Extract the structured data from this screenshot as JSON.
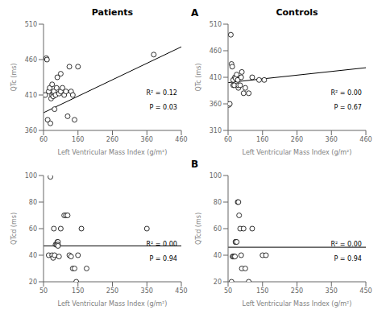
{
  "chart_data": [
    {
      "type": "scatter",
      "title": "Patients",
      "color": "black",
      "marker": "hollow circle",
      "grid": false,
      "x": [
        65,
        68,
        70,
        72,
        75,
        78,
        80,
        82,
        85,
        85,
        88,
        90,
        90,
        92,
        95,
        98,
        100,
        105,
        110,
        110,
        115,
        120,
        125,
        130,
        135,
        140,
        145,
        150,
        160,
        380
      ],
      "values": [
        410,
        462,
        460,
        375,
        415,
        420,
        370,
        405,
        410,
        425,
        408,
        413,
        415,
        390,
        410,
        420,
        435,
        412,
        440,
        415,
        420,
        410,
        415,
        380,
        450,
        415,
        410,
        375,
        450,
        467
      ],
      "regression_line": {
        "x": [
          60,
          460
        ],
        "y": [
          385,
          478
        ],
        "color": "black"
      },
      "annotations": [
        "R² = 0.12",
        "P = 0.03"
      ],
      "xlabel": "Left Ventricular Mass Index (g/m²)",
      "ylabel": "QTc (ms)",
      "xlim": [
        60,
        460
      ],
      "xticks": [
        60,
        160,
        260,
        360,
        460
      ],
      "ylim": [
        360,
        510
      ],
      "yticks": [
        360,
        410,
        460,
        510
      ]
    },
    {
      "type": "scatter",
      "title": "Controls",
      "panel_label": "A",
      "color": "black",
      "marker": "hollow circle",
      "grid": false,
      "x": [
        62,
        65,
        68,
        70,
        72,
        75,
        75,
        78,
        80,
        82,
        85,
        88,
        90,
        90,
        95,
        98,
        100,
        105,
        110,
        120,
        130,
        150,
        165
      ],
      "values": [
        358,
        360,
        490,
        435,
        430,
        395,
        405,
        395,
        410,
        408,
        415,
        405,
        390,
        395,
        395,
        410,
        420,
        380,
        390,
        380,
        410,
        405,
        405
      ],
      "regression_line": {
        "x": [
          60,
          460
        ],
        "y": [
          400,
          428
        ],
        "color": "black"
      },
      "annotations": [
        "R² = 0.00",
        "P = 0.67"
      ],
      "xlabel": "Left Ventricular Mass Index (g/m²)",
      "ylabel": "QTc (ms)",
      "xlim": [
        60,
        460
      ],
      "xticks": [
        60,
        160,
        260,
        360,
        460
      ],
      "ylim": [
        310,
        510
      ],
      "yticks": [
        310,
        360,
        410,
        460,
        510
      ]
    },
    {
      "type": "scatter",
      "color": "black",
      "marker": "hollow circle",
      "grid": false,
      "x": [
        65,
        70,
        75,
        78,
        80,
        82,
        85,
        88,
        90,
        92,
        92,
        92,
        95,
        100,
        110,
        115,
        120,
        125,
        130,
        135,
        140,
        145,
        150,
        160,
        175,
        350
      ],
      "values": [
        40,
        99,
        40,
        38,
        60,
        40,
        48,
        48,
        50,
        50,
        48,
        47,
        39,
        60,
        70,
        70,
        70,
        40,
        39,
        30,
        30,
        20,
        40,
        60,
        30,
        60
      ],
      "regression_line": {
        "x": [
          50,
          450
        ],
        "y": [
          47,
          47
        ],
        "color": "black"
      },
      "annotations": [
        "R² = 0.00",
        "P = 0.94"
      ],
      "xlabel": "Left Ventricular Mass Index (g/m²)",
      "ylabel": "QTcd (ms)",
      "xlim": [
        50,
        450
      ],
      "xticks": [
        50,
        150,
        250,
        350,
        450
      ],
      "ylim": [
        20,
        100
      ],
      "yticks": [
        20,
        40,
        60,
        80,
        100
      ]
    },
    {
      "type": "scatter",
      "panel_label": "B",
      "color": "black",
      "marker": "hollow circle",
      "grid": false,
      "x": [
        60,
        63,
        65,
        68,
        70,
        72,
        72,
        72,
        75,
        78,
        80,
        82,
        85,
        88,
        90,
        95,
        100,
        110,
        120,
        150,
        160
      ],
      "values": [
        20,
        39,
        39,
        39,
        39,
        50,
        50,
        50,
        50,
        80,
        80,
        70,
        60,
        40,
        30,
        60,
        30,
        20,
        60,
        40,
        40
      ],
      "regression_line": {
        "x": [
          50,
          450
        ],
        "y": [
          46,
          46
        ],
        "color": "black"
      },
      "annotations": [
        "R² = 0.00",
        "P = 0.94"
      ],
      "xlabel": "Left Ventricular Mass Index (g/m²)",
      "ylabel": "QTcd (ms)",
      "xlim": [
        50,
        450
      ],
      "xticks": [
        50,
        150,
        250,
        350,
        450
      ],
      "ylim": [
        20,
        100
      ],
      "yticks": [
        20,
        40,
        60,
        80,
        100
      ]
    }
  ]
}
